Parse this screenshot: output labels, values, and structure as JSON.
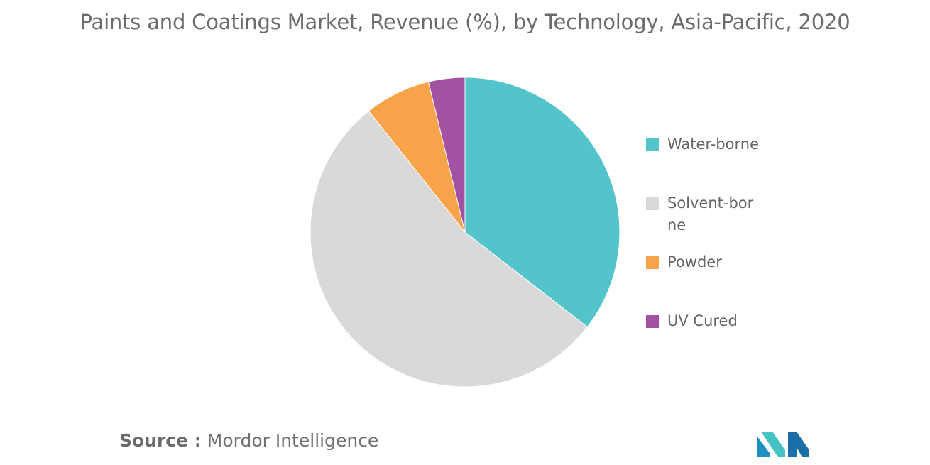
{
  "chart_data": {
    "type": "pie",
    "title": "Paints and Coatings Market, Revenue (%), by Technology, Asia-Pacific, 2020",
    "categories": [
      "Water-borne",
      "Solvent-borne",
      "Powder",
      "UV Cured"
    ],
    "values": [
      35.5,
      53.8,
      6.9,
      3.8
    ],
    "colors": [
      "#52c4ca",
      "#d9d9d9",
      "#f9a34a",
      "#a352a3"
    ],
    "legend_labels": [
      [
        "Water-borne"
      ],
      [
        "Solvent-bor",
        "ne"
      ],
      [
        "Powder"
      ],
      [
        "UV Cured"
      ]
    ],
    "legend_position": "right"
  },
  "source": {
    "label": "Source :",
    "name": "Mordor Intelligence"
  },
  "logo": {
    "colors": [
      "#1e8fbf",
      "#44c2c4",
      "#1b6fa8"
    ]
  }
}
